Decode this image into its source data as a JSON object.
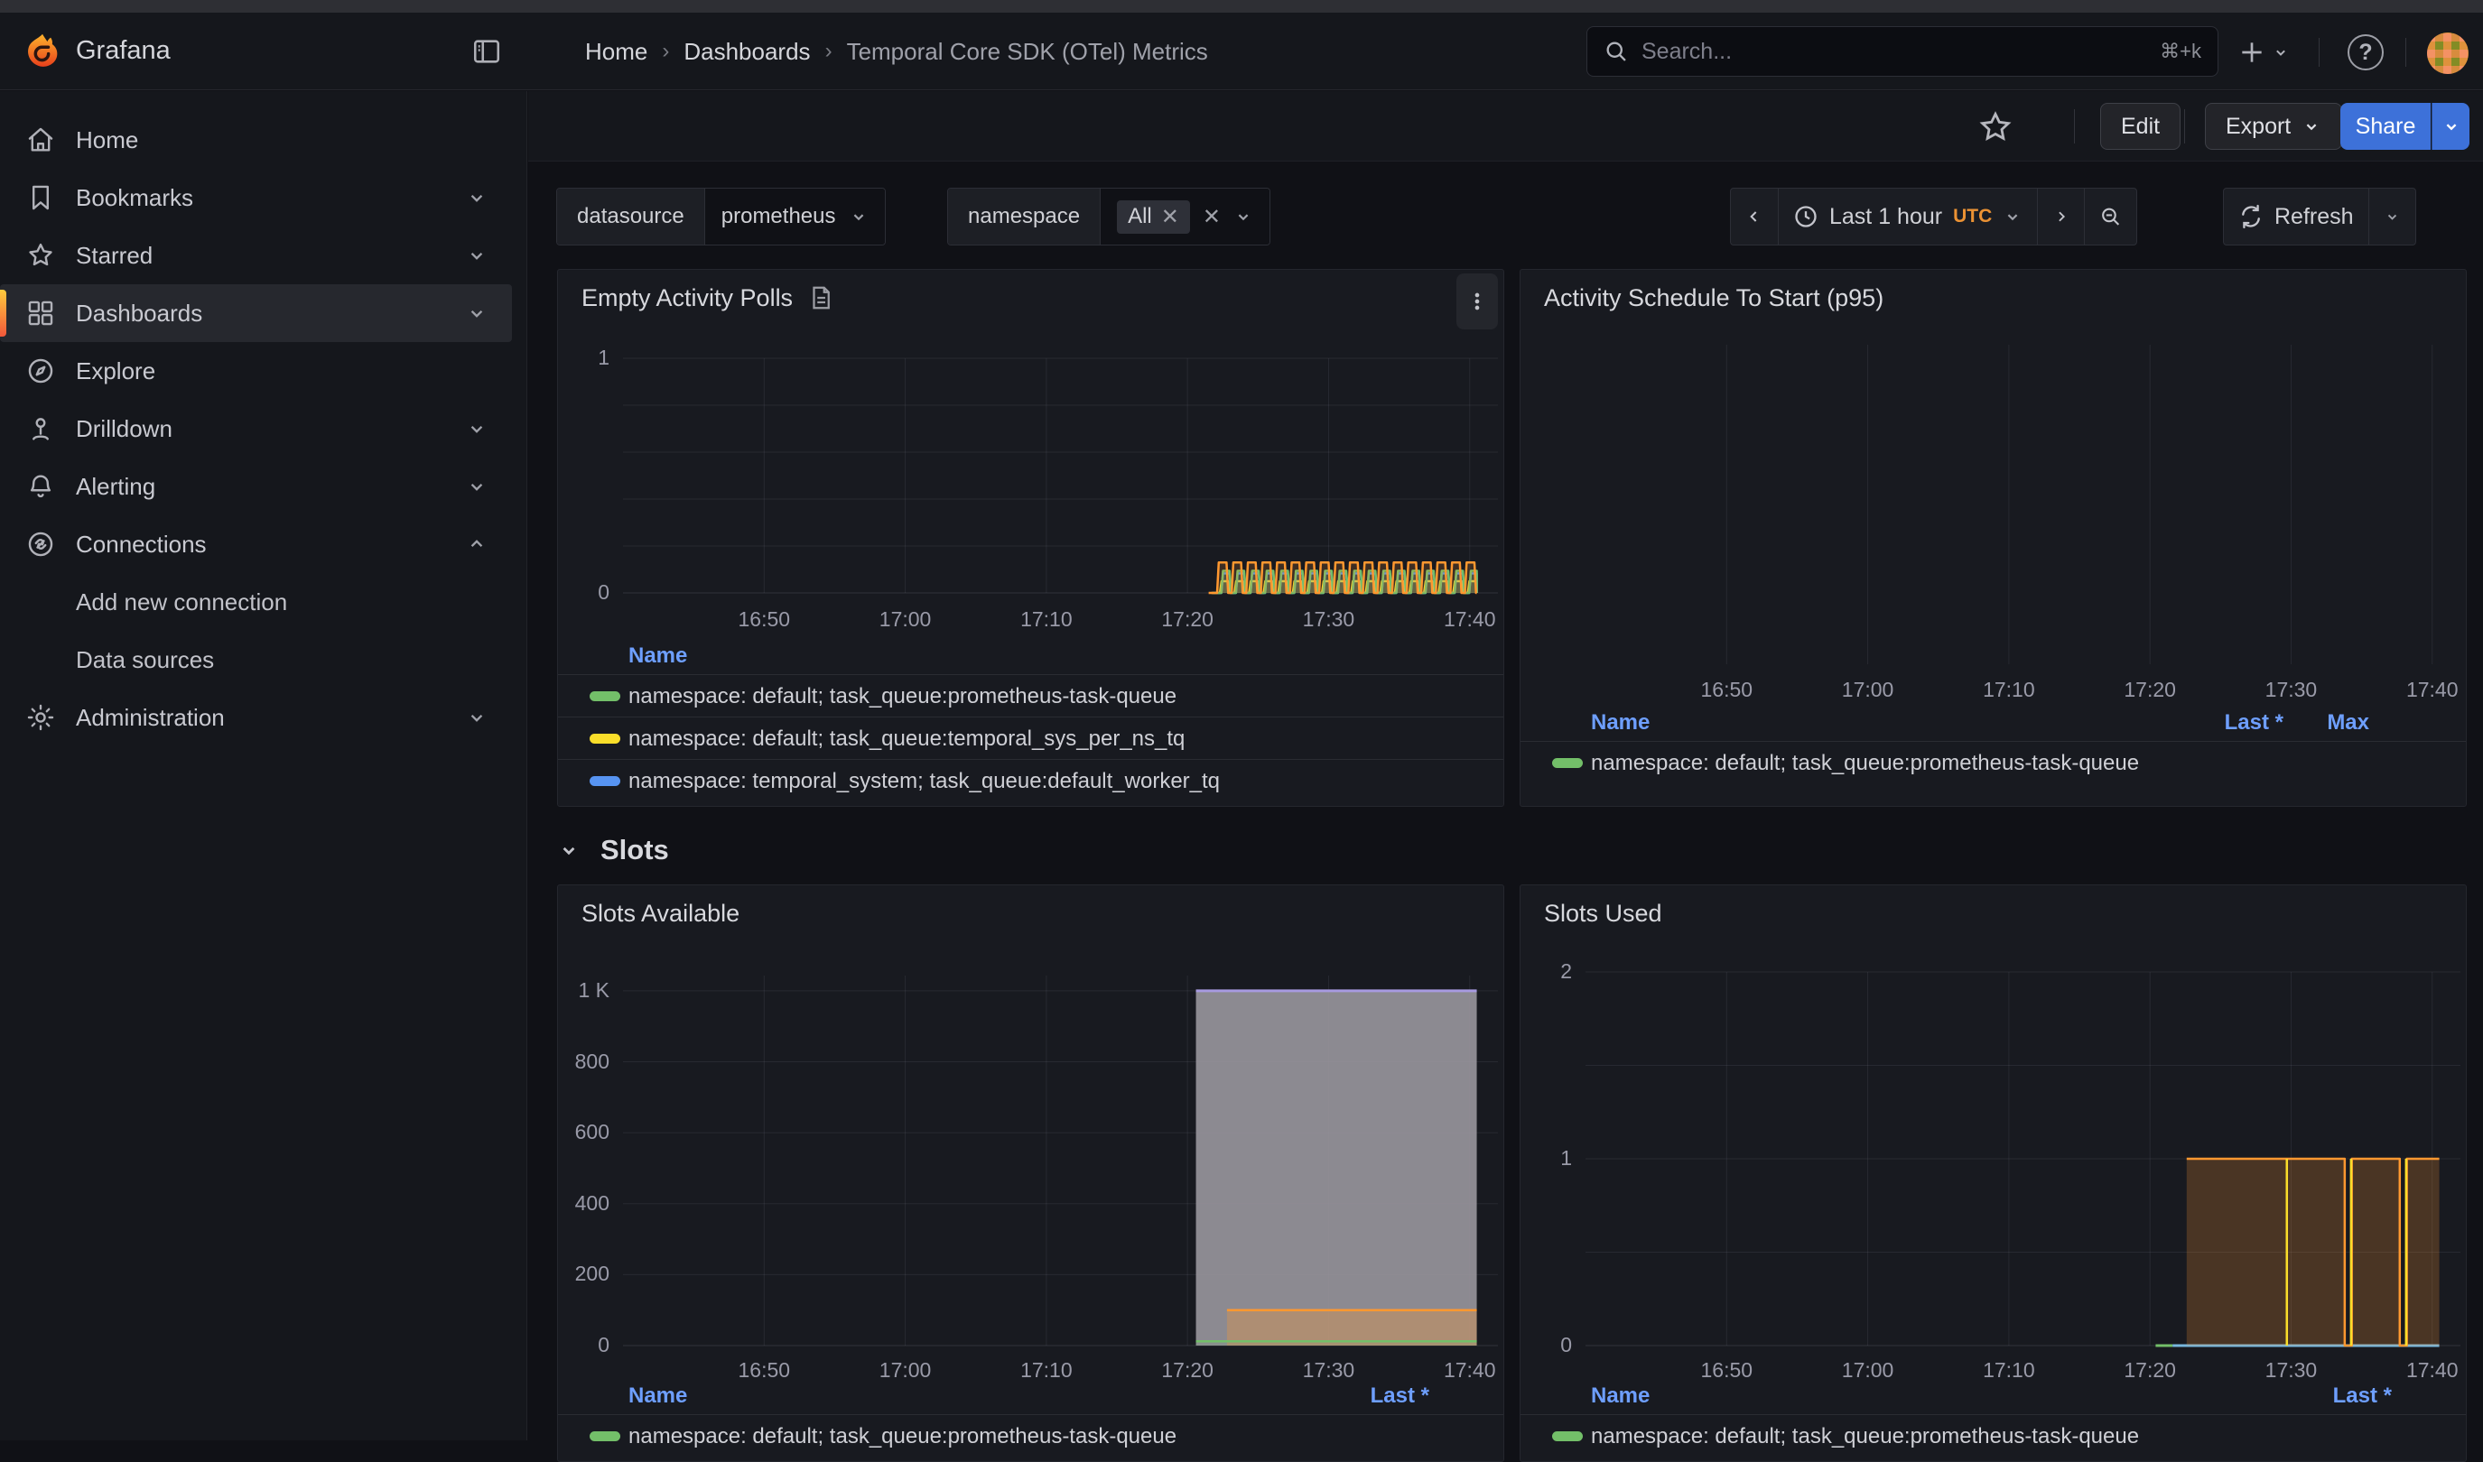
{
  "chrome": {
    "top_nav": {
      "brand": "Grafana",
      "breadcrumbs": [
        "Home",
        "Dashboards",
        "Temporal Core SDK (OTel) Metrics"
      ],
      "search_placeholder": "Search...",
      "search_shortcut": "⌘+k"
    },
    "actions": {
      "edit": "Edit",
      "export": "Export",
      "share": "Share"
    }
  },
  "sidebar": {
    "items": [
      {
        "icon": "home",
        "label": "Home"
      },
      {
        "icon": "bookmark",
        "label": "Bookmarks",
        "chevron": "down"
      },
      {
        "icon": "star",
        "label": "Starred",
        "chevron": "down"
      },
      {
        "icon": "grid",
        "label": "Dashboards",
        "chevron": "down",
        "active": true
      },
      {
        "icon": "compass",
        "label": "Explore"
      },
      {
        "icon": "drilldown",
        "label": "Drilldown",
        "chevron": "down"
      },
      {
        "icon": "bell",
        "label": "Alerting",
        "chevron": "down"
      },
      {
        "icon": "link",
        "label": "Connections",
        "chevron": "up"
      },
      {
        "label": "Add new connection",
        "child": true
      },
      {
        "label": "Data sources",
        "child": true
      },
      {
        "icon": "gear",
        "label": "Administration",
        "chevron": "down"
      }
    ]
  },
  "toolbar": {
    "variables": [
      {
        "label": "datasource",
        "value": "prometheus"
      },
      {
        "label": "namespace",
        "value": "All"
      }
    ],
    "time_range": {
      "label": "Last 1 hour",
      "timezone": "UTC"
    },
    "refresh_label": "Refresh"
  },
  "section": {
    "title": "Slots"
  },
  "panels": [
    {
      "title": "Empty Activity Polls",
      "has_description_icon": true,
      "has_menu": true,
      "legend": {
        "columns": [
          "Name"
        ],
        "rows": [
          {
            "color": "#73BF69",
            "name": "namespace: default; task_queue:prometheus-task-queue"
          },
          {
            "color": "#FADE2A",
            "name": "namespace: default; task_queue:temporal_sys_per_ns_tq"
          },
          {
            "color": "#5794F2",
            "name": "namespace: temporal_system; task_queue:default_worker_tq"
          }
        ]
      }
    },
    {
      "title": "Activity Schedule To Start (p95)",
      "legend": {
        "columns": [
          "Name",
          "Last *",
          "Max"
        ],
        "rows": [
          {
            "color": "#73BF69",
            "name": "namespace: default; task_queue:prometheus-task-queue",
            "last": "",
            "max": ""
          }
        ]
      }
    },
    {
      "title": "Slots Available",
      "legend": {
        "columns": [
          "Name",
          "Last *"
        ],
        "rows": [
          {
            "color": "#73BF69",
            "name": "namespace: default; task_queue:prometheus-task-queue",
            "clipped": true
          }
        ]
      }
    },
    {
      "title": "Slots Used",
      "legend": {
        "columns": [
          "Name",
          "Last *"
        ],
        "rows": [
          {
            "color": "#73BF69",
            "name": "namespace: default; task_queue:prometheus-task-queue",
            "clipped": true
          }
        ]
      }
    }
  ],
  "chart_data": [
    {
      "title": "Empty Activity Polls",
      "type": "line",
      "x_domain": [
        "16:40",
        "17:42"
      ],
      "x_ticks": [
        "16:50",
        "17:00",
        "17:10",
        "17:20",
        "17:30",
        "17:40"
      ],
      "y_ticks": [
        {
          "v": 1,
          "label": "1"
        },
        {
          "v": 0,
          "label": "0"
        }
      ],
      "y_max": 1,
      "gridlines_h": [
        0,
        0.2,
        0.4,
        0.6,
        0.8,
        1
      ],
      "series": [
        {
          "kind": "wave",
          "color": "#FADE2A",
          "start": "17:22.3",
          "end": "17:40.5",
          "period_s": 62,
          "rise_s": 7,
          "plateau_s": 28,
          "peak": 0.05
        },
        {
          "kind": "wave",
          "color": "#5794F2",
          "start": "17:22.4",
          "end": "17:40.5",
          "period_s": 62,
          "rise_s": 7,
          "plateau_s": 28,
          "peak": 0.083
        },
        {
          "kind": "wave",
          "color": "#73BF69",
          "start": "17:22.4",
          "end": "17:40.5",
          "period_s": 62,
          "rise_s": 7,
          "plateau_s": 28,
          "peak": 0.094
        },
        {
          "kind": "wave",
          "color": "#FF9830",
          "start": "17:22.1",
          "end": "17:40.5",
          "period_s": 62,
          "rise_s": 7,
          "plateau_s": 33,
          "peak": 0.13
        }
      ]
    },
    {
      "title": "Activity Schedule To Start (p95)",
      "type": "line",
      "x_domain": [
        "16:40",
        "17:42"
      ],
      "x_ticks": [
        "16:50",
        "17:00",
        "17:10",
        "17:20",
        "17:30",
        "17:40"
      ],
      "y_ticks": [],
      "y_max": null,
      "gridlines_h": [],
      "series": []
    },
    {
      "title": "Slots Available",
      "type": "area",
      "x_domain": [
        "16:40",
        "17:42"
      ],
      "x_ticks": [
        "16:50",
        "17:00",
        "17:10",
        "17:20",
        "17:30",
        "17:40"
      ],
      "y_ticks": [
        {
          "v": 1000,
          "label": "1 K"
        },
        {
          "v": 800,
          "label": "800"
        },
        {
          "v": 600,
          "label": "600"
        },
        {
          "v": 400,
          "label": "400"
        },
        {
          "v": 200,
          "label": "200"
        },
        {
          "v": 0,
          "label": "0"
        }
      ],
      "y_max": 1043,
      "gridlines_h": [
        0,
        200,
        400,
        600,
        800,
        1000
      ],
      "series": [
        {
          "kind": "step",
          "color": "#A79AE1",
          "width": 3,
          "fill": "#97949B",
          "fill_opacity": 0.92,
          "points": [
            [
              "17:20.6",
              1000
            ],
            [
              "17:40.5",
              1000
            ]
          ]
        },
        {
          "kind": "step",
          "color": "#FF9830",
          "width": 2.5,
          "fill": "#FF9830",
          "fill_opacity": 0.3,
          "points": [
            [
              "17:22.8",
              100
            ],
            [
              "17:40.5",
              100
            ]
          ]
        },
        {
          "kind": "step",
          "color": "#73BF69",
          "width": 2.5,
          "fill": "#73BF69",
          "fill_opacity": 0.12,
          "points": [
            [
              "17:20.6",
              12
            ],
            [
              "17:40.5",
              12
            ]
          ]
        }
      ]
    },
    {
      "title": "Slots Used",
      "type": "area",
      "x_domain": [
        "16:40",
        "17:42"
      ],
      "x_ticks": [
        "16:50",
        "17:00",
        "17:10",
        "17:20",
        "17:30",
        "17:40"
      ],
      "y_ticks": [
        {
          "v": 2,
          "label": "2"
        },
        {
          "v": 1,
          "label": "1"
        },
        {
          "v": 0,
          "label": "0"
        }
      ],
      "y_max": 2,
      "gridlines_h": [
        0,
        0.5,
        1,
        1.5,
        2
      ],
      "series": [
        {
          "kind": "step",
          "color": "#73BF69",
          "width": 3,
          "points": [
            [
              "17:20.4",
              0
            ],
            [
              "17:21.6",
              0
            ]
          ]
        },
        {
          "kind": "step",
          "color": "#77B7DD",
          "width": 3,
          "points": [
            [
              "17:21.6",
              0
            ],
            [
              "17:40.5",
              0
            ]
          ]
        },
        {
          "kind": "step",
          "color": "#FF9830",
          "width": 2.5,
          "fill": "#FF9830",
          "fill_opacity": 0.22,
          "points": [
            [
              "17:22.6",
              1
            ],
            [
              "17:33.8",
              1
            ],
            [
              "17:33.8",
              0
            ],
            [
              "17:34.3",
              0
            ],
            [
              "17:34.3",
              1
            ],
            [
              "17:37.7",
              1
            ],
            [
              "17:37.7",
              0
            ],
            [
              "17:38.2",
              0
            ],
            [
              "17:38.2",
              1
            ],
            [
              "17:40.5",
              1
            ]
          ]
        },
        {
          "kind": "spikes",
          "color": "#FADE2A",
          "width": 2.5,
          "v": 1,
          "times": [
            "17:29.7",
            "17:34.25",
            "17:38.15"
          ]
        }
      ]
    }
  ]
}
